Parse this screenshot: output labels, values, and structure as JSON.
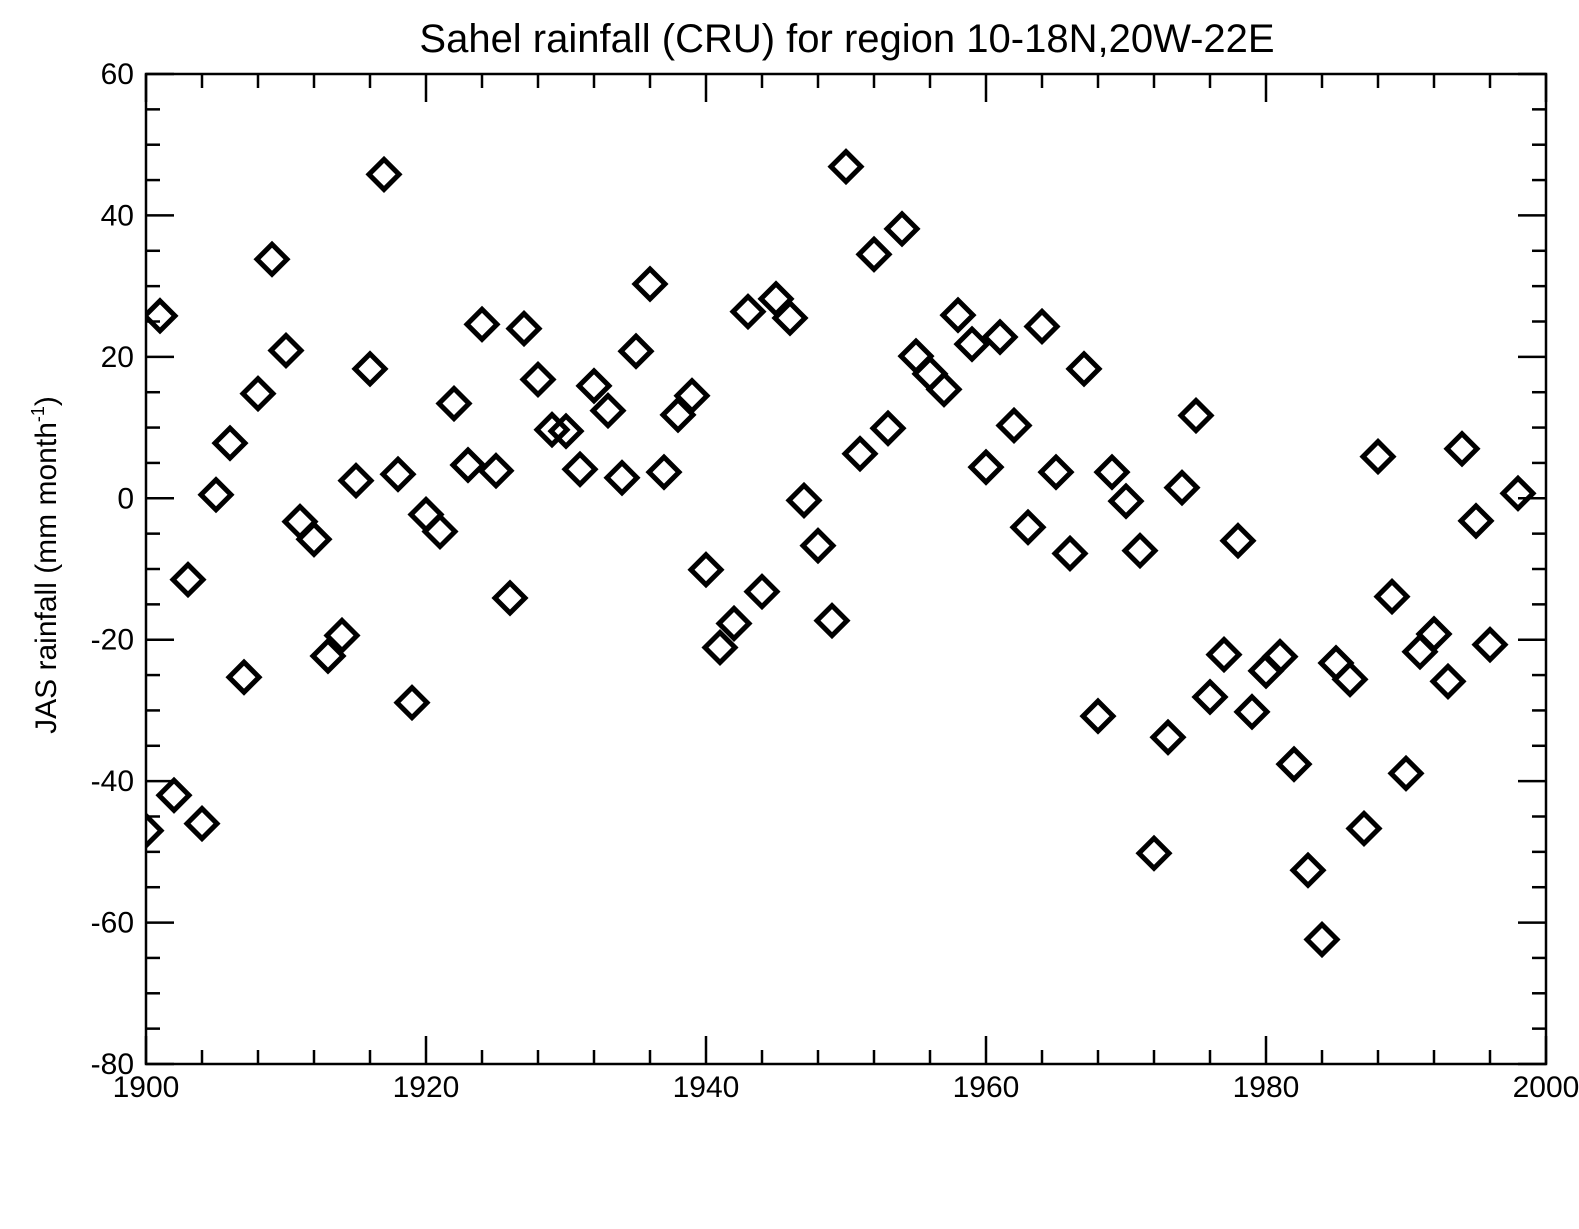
{
  "chart_data": {
    "type": "scatter",
    "title": "Sahel rainfall (CRU) for region 10-18N,20W-22E",
    "xlabel": "",
    "ylabel": {
      "before": "JAS rainfall (mm month",
      "superscript": "-1",
      "after": ")"
    },
    "xlim": [
      1900,
      2000
    ],
    "ylim": [
      -80,
      60
    ],
    "x_ticks": [
      1900,
      1920,
      1940,
      1960,
      1980,
      2000
    ],
    "x_tick_labels": [
      "1900",
      "1920",
      "1940",
      "1960",
      "1980",
      "2000"
    ],
    "y_ticks": [
      -80,
      -60,
      -40,
      -20,
      0,
      20,
      40,
      60
    ],
    "y_tick_labels": [
      "-80",
      "-60",
      "-40",
      "-20",
      "0",
      "20",
      "40",
      "60"
    ],
    "grid": false,
    "legend": "none",
    "marker": "open-diamond",
    "marker_color": "#000000",
    "points": [
      [
        1900,
        -47
      ],
      [
        1901,
        25.8
      ],
      [
        1902,
        -42
      ],
      [
        1903,
        -11.5
      ],
      [
        1904,
        -46
      ],
      [
        1905,
        0.5
      ],
      [
        1906,
        7.8
      ],
      [
        1907,
        -25.3
      ],
      [
        1908,
        14.8
      ],
      [
        1909,
        33.8
      ],
      [
        1910,
        20.9
      ],
      [
        1911,
        -3.3
      ],
      [
        1912,
        -5.8
      ],
      [
        1913,
        -22.3
      ],
      [
        1914,
        -19.4
      ],
      [
        1915,
        2.5
      ],
      [
        1916,
        18.3
      ],
      [
        1917,
        45.8
      ],
      [
        1918,
        3.4
      ],
      [
        1919,
        -28.9
      ],
      [
        1920,
        -2.3
      ],
      [
        1921,
        -4.7
      ],
      [
        1922,
        13.4
      ],
      [
        1923,
        4.7
      ],
      [
        1924,
        24.6
      ],
      [
        1925,
        3.9
      ],
      [
        1926,
        -14.1
      ],
      [
        1927,
        24.0
      ],
      [
        1928,
        16.8
      ],
      [
        1929,
        9.7
      ],
      [
        1930,
        9.5
      ],
      [
        1931,
        4.1
      ],
      [
        1932,
        15.9
      ],
      [
        1933,
        12.4
      ],
      [
        1934,
        2.9
      ],
      [
        1935,
        20.8
      ],
      [
        1936,
        30.3
      ],
      [
        1937,
        3.7
      ],
      [
        1938,
        11.8
      ],
      [
        1939,
        14.5
      ],
      [
        1940,
        -10.1
      ],
      [
        1941,
        -21.1
      ],
      [
        1942,
        -17.7
      ],
      [
        1943,
        26.4
      ],
      [
        1944,
        -13.2
      ],
      [
        1945,
        28.2
      ],
      [
        1946,
        25.5
      ],
      [
        1947,
        -0.3
      ],
      [
        1948,
        -6.7
      ],
      [
        1949,
        -17.3
      ],
      [
        1950,
        46.9
      ],
      [
        1951,
        6.3
      ],
      [
        1952,
        34.5
      ],
      [
        1953,
        9.9
      ],
      [
        1954,
        38.1
      ],
      [
        1955,
        20.1
      ],
      [
        1956,
        17.6
      ],
      [
        1957,
        15.4
      ],
      [
        1958,
        25.9
      ],
      [
        1959,
        21.8
      ],
      [
        1960,
        4.4
      ],
      [
        1961,
        22.8
      ],
      [
        1962,
        10.3
      ],
      [
        1963,
        -4.1
      ],
      [
        1964,
        24.3
      ],
      [
        1965,
        3.7
      ],
      [
        1966,
        -7.8
      ],
      [
        1967,
        18.3
      ],
      [
        1968,
        -30.8
      ],
      [
        1969,
        3.7
      ],
      [
        1970,
        -0.4
      ],
      [
        1971,
        -7.4
      ],
      [
        1972,
        -50.2
      ],
      [
        1973,
        -33.8
      ],
      [
        1974,
        1.5
      ],
      [
        1975,
        11.7
      ],
      [
        1976,
        -28.1
      ],
      [
        1977,
        -22.1
      ],
      [
        1978,
        -6.0
      ],
      [
        1979,
        -30.2
      ],
      [
        1980,
        -24.4
      ],
      [
        1981,
        -22.4
      ],
      [
        1982,
        -37.6
      ],
      [
        1983,
        -52.6
      ],
      [
        1984,
        -62.4
      ],
      [
        1985,
        -23.3
      ],
      [
        1986,
        -25.6
      ],
      [
        1987,
        -46.7
      ],
      [
        1988,
        5.9
      ],
      [
        1989,
        -13.9
      ],
      [
        1990,
        -38.9
      ],
      [
        1991,
        -21.7
      ],
      [
        1992,
        -19.2
      ],
      [
        1993,
        -25.9
      ],
      [
        1994,
        7.0
      ],
      [
        1995,
        -3.2
      ],
      [
        1996,
        -20.7
      ],
      [
        1998,
        0.7
      ]
    ]
  }
}
